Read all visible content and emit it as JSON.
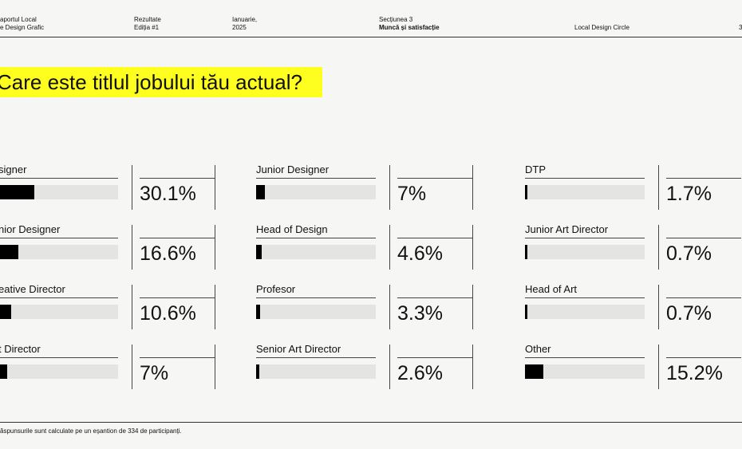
{
  "header": {
    "report_line1": "aportul Local",
    "report_line2": "e Design Grafic",
    "results_line1": "Rezultate",
    "results_line2": "Ediția #1",
    "date_line1": "Ianuarie,",
    "date_line2": "2025",
    "section_line1": "Secțiunea 3",
    "section_line2": "Muncă și satisfacție",
    "org": "Local Design Circle",
    "page_num": "3"
  },
  "question": "Care este titlul jobului tău actual?",
  "footnote": "ăspunsurile sunt calculate pe un eșantion de 334 de participanți.",
  "chart_data": {
    "type": "bar",
    "title": "Care este titlul jobului tău actual?",
    "unit": "%",
    "xlim": [
      0,
      100
    ],
    "categories": [
      "Designer",
      "Senior Designer",
      "Creative Director",
      "Art Director",
      "Junior Designer",
      "Head of Design",
      "Profesor",
      "Senior Art Director",
      "DTP",
      "Junior Art Director",
      "Head of Art",
      "Other"
    ],
    "display_labels": [
      "signer",
      "nior Designer",
      "eative Director",
      "t Director",
      "Junior Designer",
      "Head of Design",
      "Profesor",
      "Senior Art Director",
      "DTP",
      "Junior Art Director",
      "Head of Art",
      "Other"
    ],
    "values": [
      30.1,
      16.6,
      10.6,
      7,
      7,
      4.6,
      3.3,
      2.6,
      1.7,
      0.7,
      0.7,
      15.2
    ],
    "value_labels": [
      "30.1%",
      "16.6%",
      "10.6%",
      "7%",
      "7%",
      "4.6%",
      "3.3%",
      "2.6%",
      "1.7%",
      "0.7%",
      "0.7%",
      "15.2%"
    ]
  }
}
